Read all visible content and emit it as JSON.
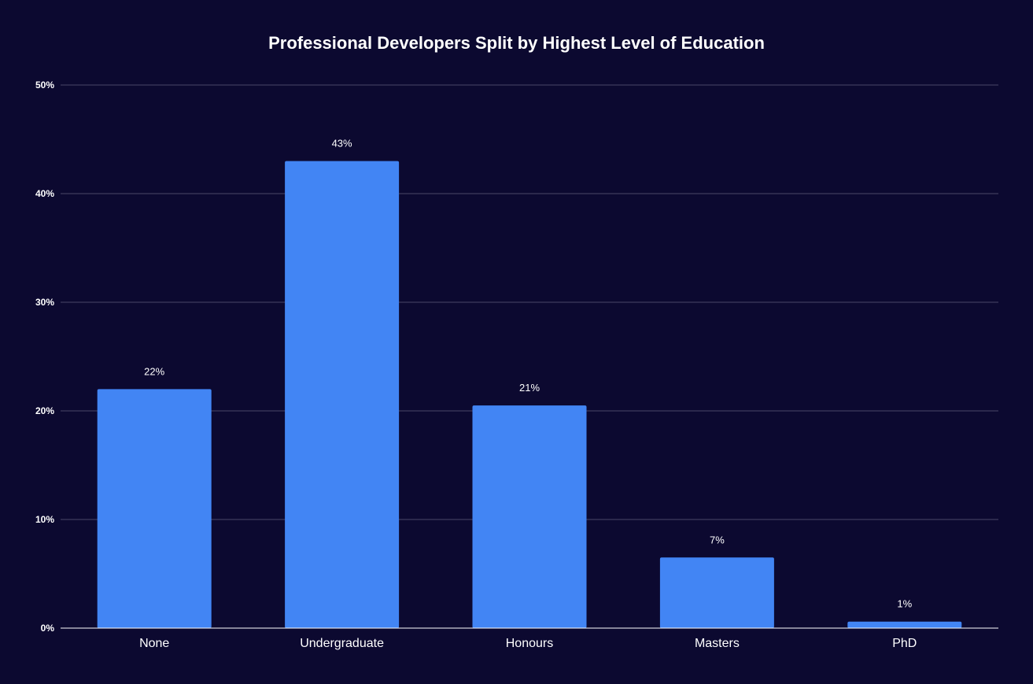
{
  "chart_data": {
    "type": "bar",
    "title": "Professional Developers Split by Highest Level of Education",
    "categories": [
      "None",
      "Undergraduate",
      "Honours",
      "Masters",
      "PhD"
    ],
    "values": [
      22,
      43,
      20.5,
      6.5,
      0.6
    ],
    "data_labels": [
      "22%",
      "43%",
      "21%",
      "7%",
      "1%"
    ],
    "ylim": [
      0,
      50
    ],
    "yticks": [
      0,
      10,
      20,
      30,
      40,
      50
    ],
    "ytick_labels": [
      "0%",
      "10%",
      "20%",
      "30%",
      "40%",
      "50%"
    ],
    "xlabel": "",
    "ylabel": "",
    "grid": true,
    "colors": {
      "background": "#0c0930",
      "bar": "#4285f4",
      "gridline": "#4a4768",
      "axis": "#ffffff",
      "text": "#ffffff"
    }
  }
}
